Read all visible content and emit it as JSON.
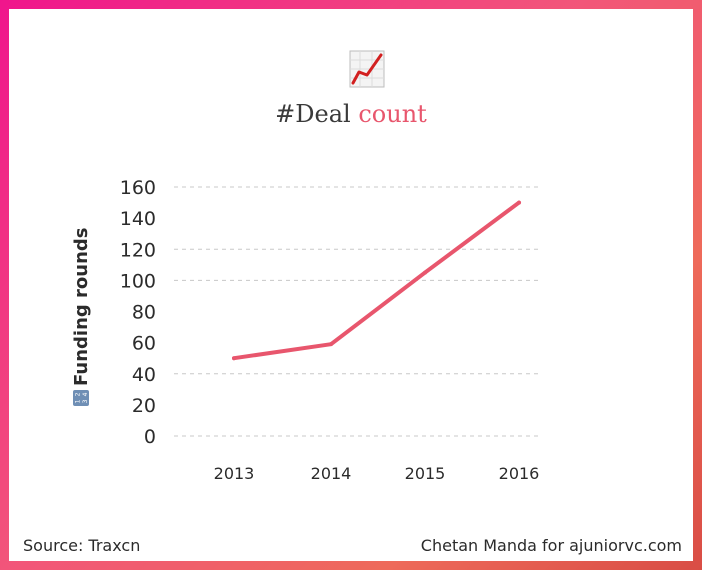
{
  "title": {
    "icon": "chart-increasing-icon",
    "prefix": "#Deal",
    "accent": "count"
  },
  "colors": {
    "line": "#e8566d",
    "accent": "#e8566d",
    "grid": "#c8c8c8"
  },
  "footer": {
    "source": "Source: Traxcn",
    "credit": "Chetan Manda for ajuniorvc.com"
  },
  "chart_data": {
    "type": "line",
    "title": "#Deal count",
    "xlabel": "",
    "ylabel": "Funding rounds",
    "ylabel_icon": "input-numbers-icon",
    "categories": [
      "2013",
      "2014",
      "2015",
      "2016"
    ],
    "series": [
      {
        "name": "Funding rounds",
        "values": [
          50,
          59,
          105,
          150
        ]
      }
    ],
    "yticks": [
      {
        "label": "160",
        "value": 160
      },
      {
        "label": "140",
        "value": 140
      },
      {
        "label": "120",
        "value": 120
      },
      {
        "label": "100",
        "value": 100
      },
      {
        "label": "80",
        "value": 80
      },
      {
        "label": "60",
        "value": 60
      },
      {
        "label": "40",
        "value": 40
      },
      {
        "label": "20",
        "value": 20
      },
      {
        "label": "0",
        "value": 0
      }
    ],
    "gridlines": [
      0,
      40,
      100,
      120,
      160
    ],
    "ylim": [
      0,
      160
    ],
    "grid": true,
    "legend": "none"
  }
}
